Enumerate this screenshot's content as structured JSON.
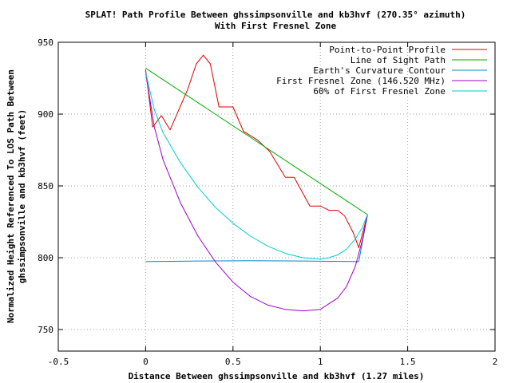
{
  "chart_data": {
    "type": "line",
    "title_line1": "SPLAT! Path Profile Between ghssimpsonville and kb3hvf (270.35° azimuth)",
    "title_line2": "With First Fresnel Zone",
    "xlabel": "Distance Between ghssimpsonville and kb3hvf (1.27 miles)",
    "ylabel_line1": "Normalized Height Referenced To LOS Path Between",
    "ylabel_line2": "ghssimpsonville and kb3hvf (feet)",
    "xlim": [
      -0.5,
      2
    ],
    "ylim": [
      735,
      950
    ],
    "x_ticks": [
      -0.5,
      0,
      0.5,
      1,
      1.5,
      2
    ],
    "x_tick_labels": [
      "-0.5",
      "0",
      "0.5",
      "1",
      "1.5",
      "2"
    ],
    "y_ticks": [
      750,
      800,
      850,
      900,
      950
    ],
    "y_tick_labels": [
      "750",
      "800",
      "850",
      "900",
      "950"
    ],
    "grid": true,
    "legend_position": "top-right",
    "series": [
      {
        "name": "Point-to-Point Profile",
        "color": "#dd0000",
        "x": [
          0,
          0.04,
          0.09,
          0.14,
          0.24,
          0.29,
          0.33,
          0.37,
          0.42,
          0.5,
          0.56,
          0.64,
          0.71,
          0.8,
          0.85,
          0.94,
          1.0,
          1.05,
          1.1,
          1.14,
          1.19,
          1.22,
          1.27
        ],
        "y": [
          931,
          891,
          899,
          889,
          917,
          935,
          941,
          935,
          905,
          905,
          888,
          882,
          874,
          856,
          856,
          836,
          836,
          833,
          833,
          829,
          817,
          807,
          830
        ]
      },
      {
        "name": "Line of Sight Path",
        "color": "#00aa00",
        "x": [
          0,
          1.27
        ],
        "y": [
          932,
          830
        ]
      },
      {
        "name": "Earth's Curvature Contour",
        "color": "#0088cc",
        "x": [
          0,
          0.3,
          0.6,
          0.9,
          1.22,
          1.27
        ],
        "y": [
          797.3,
          797.7,
          797.9,
          797.7,
          797.3,
          830
        ]
      },
      {
        "name": "First Fresnel Zone (146.520 MHz)",
        "color": "#9900cc",
        "x": [
          0,
          0.05,
          0.1,
          0.2,
          0.3,
          0.4,
          0.5,
          0.6,
          0.7,
          0.8,
          0.9,
          1.0,
          1.05,
          1.1,
          1.15,
          1.2,
          1.24,
          1.27
        ],
        "y": [
          929,
          891,
          868,
          838,
          815,
          797,
          783,
          773,
          767,
          764,
          763,
          764,
          768,
          772,
          780,
          794,
          812,
          830
        ]
      },
      {
        "name": "60% of First Fresnel Zone",
        "color": "#00cccc",
        "x": [
          0,
          0.05,
          0.1,
          0.2,
          0.3,
          0.4,
          0.5,
          0.6,
          0.7,
          0.8,
          0.9,
          1.0,
          1.05,
          1.1,
          1.15,
          1.2,
          1.24,
          1.27
        ],
        "y": [
          929,
          903,
          887,
          866,
          849,
          835,
          824,
          815,
          808,
          803,
          800,
          799,
          800,
          802,
          806,
          813,
          821,
          830
        ]
      }
    ]
  }
}
